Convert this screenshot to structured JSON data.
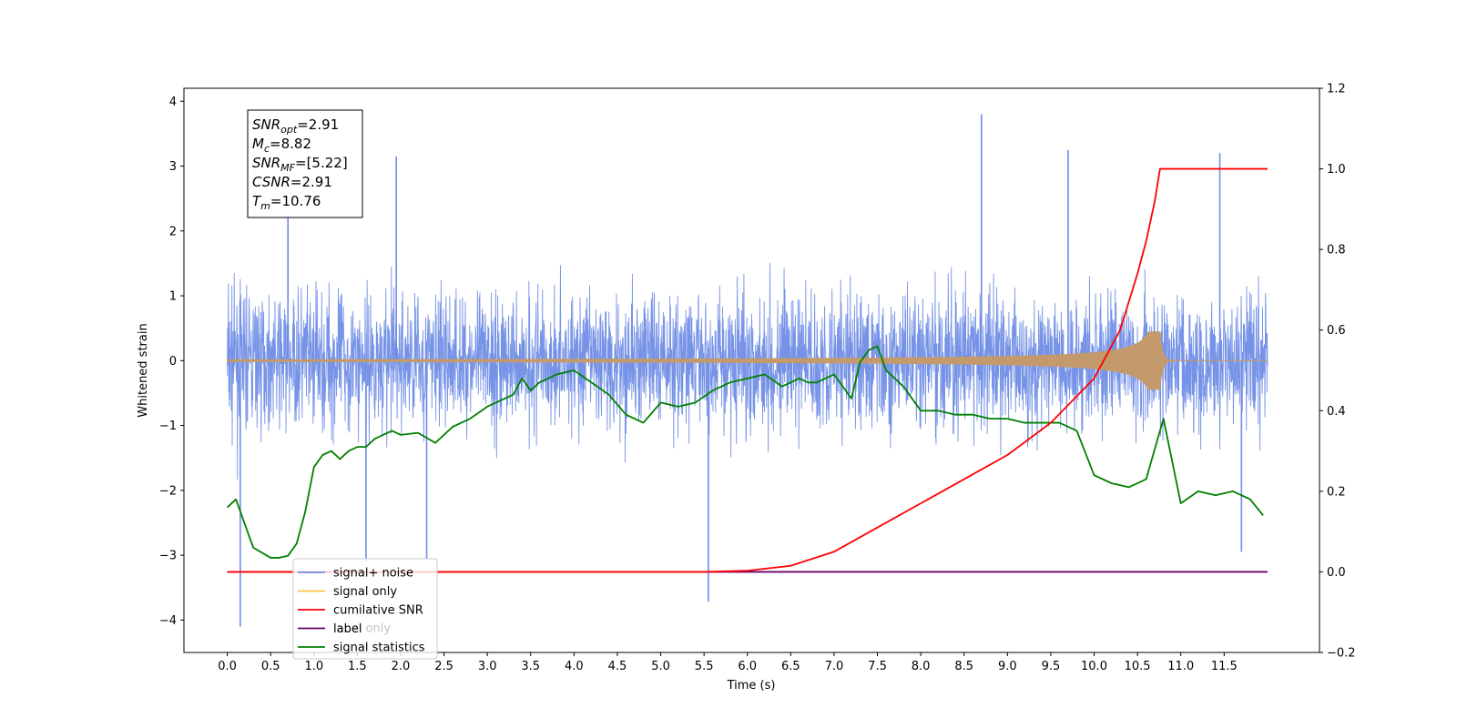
{
  "chart_data": {
    "type": "line",
    "xlabel": "Time (s)",
    "ylabel": "Whitened strain",
    "xlim": [
      -0.5,
      12.6
    ],
    "ylim": [
      -4.5,
      4.2
    ],
    "y2lim": [
      -0.2,
      1.2
    ],
    "x_ticks": [
      "0.0",
      "0.5",
      "1.0",
      "1.5",
      "2.0",
      "2.5",
      "3.0",
      "3.5",
      "4.0",
      "4.5",
      "5.0",
      "5.5",
      "6.0",
      "6.5",
      "7.0",
      "7.5",
      "8.0",
      "8.5",
      "9.0",
      "9.5",
      "10.0",
      "10.5",
      "11.0",
      "11.5"
    ],
    "y_ticks": [
      "4",
      "3",
      "2",
      "1",
      "0",
      "−1",
      "−2",
      "−3",
      "−4"
    ],
    "y2_ticks": [
      "1.2",
      "1.0",
      "0.8",
      "0.6",
      "0.4",
      "0.2",
      "0.0",
      "−0.2"
    ],
    "annotation": {
      "lines": [
        {
          "name": "SNR",
          "sub": "opt",
          "value": "=2.91"
        },
        {
          "name": "M",
          "sub": "c",
          "value": "=8.82"
        },
        {
          "name": "SNR",
          "sub": "MF",
          "value": "=[5.22]"
        },
        {
          "name": "CSNR",
          "sub": "",
          "value": "=2.91"
        },
        {
          "name": "T",
          "sub": "m",
          "value": "=10.76"
        }
      ]
    },
    "legend": {
      "placement": "lower-left",
      "entries": [
        "signal+ noise",
        "signal only",
        "cumilative SNR",
        "label",
        "signal statistics"
      ],
      "overlap_text": "label only"
    },
    "series": [
      {
        "name": "signal+ noise",
        "axis": "left",
        "color": "#6f8de6",
        "x_range": [
          0.0,
          12.0
        ],
        "band": [
          -1.3,
          1.3
        ],
        "spikes": [
          [
            0.15,
            -4.1
          ],
          [
            0.7,
            3.05
          ],
          [
            1.6,
            -3.1
          ],
          [
            1.95,
            3.15
          ],
          [
            2.3,
            -3.05
          ],
          [
            5.55,
            -3.72
          ],
          [
            8.7,
            3.8
          ],
          [
            9.7,
            3.25
          ],
          [
            11.45,
            3.2
          ],
          [
            11.7,
            -2.95
          ]
        ]
      },
      {
        "name": "signal only",
        "axis": "left",
        "color": "#c49a6c",
        "x_range": [
          0.0,
          12.0
        ],
        "merger_time": 10.76,
        "peak_amplitude": 0.45
      },
      {
        "name": "cumilative SNR",
        "axis": "right",
        "color": "#ff0000",
        "x": [
          0.0,
          5.5,
          6.0,
          6.5,
          7.0,
          7.5,
          8.0,
          8.5,
          9.0,
          9.5,
          10.0,
          10.3,
          10.5,
          10.6,
          10.7,
          10.76,
          11.0,
          12.0
        ],
        "y": [
          0.0,
          0.0,
          0.003,
          0.015,
          0.05,
          0.11,
          0.17,
          0.23,
          0.29,
          0.37,
          0.48,
          0.6,
          0.74,
          0.82,
          0.92,
          1.0,
          1.0,
          1.0
        ]
      },
      {
        "name": "label",
        "axis": "right",
        "color": "#660066",
        "x": [
          0.0,
          12.0
        ],
        "y": [
          0.0,
          0.0
        ]
      },
      {
        "name": "signal statistics",
        "axis": "right",
        "color": "#008000",
        "x": [
          0.0,
          0.1,
          0.2,
          0.3,
          0.5,
          0.6,
          0.7,
          0.8,
          0.9,
          1.0,
          1.1,
          1.2,
          1.3,
          1.4,
          1.5,
          1.6,
          1.7,
          1.8,
          1.9,
          2.0,
          2.2,
          2.4,
          2.6,
          2.7,
          2.8,
          3.0,
          3.1,
          3.3,
          3.4,
          3.5,
          3.6,
          3.8,
          4.0,
          4.2,
          4.4,
          4.6,
          4.8,
          5.0,
          5.2,
          5.4,
          5.6,
          5.8,
          6.0,
          6.2,
          6.4,
          6.6,
          6.7,
          6.8,
          7.0,
          7.2,
          7.3,
          7.4,
          7.5,
          7.6,
          7.8,
          8.0,
          8.2,
          8.4,
          8.6,
          8.8,
          9.0,
          9.2,
          9.4,
          9.6,
          9.8,
          10.0,
          10.2,
          10.4,
          10.6,
          10.8,
          11.0,
          11.2,
          11.4,
          11.6,
          11.8,
          11.95
        ],
        "y": [
          0.16,
          0.18,
          0.12,
          0.06,
          0.035,
          0.035,
          0.04,
          0.07,
          0.15,
          0.26,
          0.29,
          0.3,
          0.28,
          0.3,
          0.31,
          0.31,
          0.33,
          0.34,
          0.35,
          0.34,
          0.345,
          0.32,
          0.36,
          0.37,
          0.38,
          0.41,
          0.42,
          0.44,
          0.48,
          0.45,
          0.47,
          0.49,
          0.5,
          0.47,
          0.44,
          0.39,
          0.37,
          0.42,
          0.41,
          0.42,
          0.45,
          0.47,
          0.48,
          0.49,
          0.46,
          0.48,
          0.47,
          0.47,
          0.49,
          0.43,
          0.52,
          0.55,
          0.56,
          0.5,
          0.46,
          0.4,
          0.4,
          0.39,
          0.39,
          0.38,
          0.38,
          0.37,
          0.37,
          0.37,
          0.35,
          0.24,
          0.22,
          0.21,
          0.23,
          0.38,
          0.17,
          0.2,
          0.19,
          0.2,
          0.18,
          0.14
        ]
      }
    ]
  }
}
